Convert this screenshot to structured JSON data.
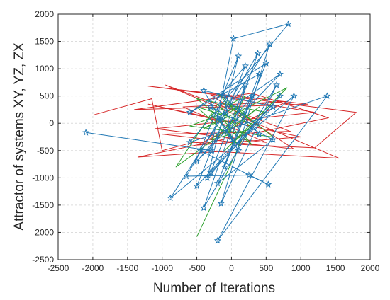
{
  "chart_data": {
    "type": "line",
    "title": "",
    "xlabel": "Number of Iterations",
    "ylabel": "Attractor of systems XY, YZ, ZX",
    "xlim": [
      -2500,
      2000
    ],
    "ylim": [
      -2500,
      2000
    ],
    "xticks": [
      -2500,
      -2000,
      -1500,
      -1000,
      -500,
      0,
      500,
      1000,
      1500,
      2000
    ],
    "yticks": [
      -2500,
      -2000,
      -1500,
      -1000,
      -500,
      0,
      500,
      1000,
      1500,
      2000
    ],
    "grid": true,
    "legend": "none",
    "series": [
      {
        "color": "#d62728",
        "marker": "none",
        "points": [
          [
            -2000,
            150
          ],
          [
            -1150,
            450
          ],
          [
            -1000,
            -500
          ],
          [
            -550,
            -350
          ],
          [
            1200,
            -450
          ],
          [
            1800,
            200
          ],
          [
            -1200,
            680
          ],
          [
            1100,
            350
          ],
          [
            -1400,
            250
          ],
          [
            300,
            550
          ],
          [
            1400,
            100
          ],
          [
            -1350,
            -620
          ],
          [
            -200,
            -520
          ],
          [
            1550,
            -640
          ],
          [
            -950,
            700
          ],
          [
            850,
            -150
          ],
          [
            -1000,
            -200
          ],
          [
            900,
            -470
          ],
          [
            -300,
            520
          ],
          [
            1200,
            200
          ],
          [
            -1100,
            -100
          ],
          [
            500,
            -350
          ],
          [
            -700,
            300
          ],
          [
            800,
            400
          ],
          [
            -500,
            -400
          ],
          [
            1000,
            -250
          ],
          [
            -1200,
            350
          ],
          [
            0,
            0
          ]
        ]
      },
      {
        "color": "#2ca02c",
        "marker": "none",
        "points": [
          [
            -500,
            -2080
          ],
          [
            -100,
            -1000
          ],
          [
            150,
            -300
          ],
          [
            -300,
            150
          ],
          [
            200,
            500
          ],
          [
            -100,
            -200
          ],
          [
            400,
            300
          ],
          [
            -800,
            -800
          ],
          [
            -200,
            350
          ],
          [
            300,
            -400
          ],
          [
            -500,
            450
          ],
          [
            500,
            200
          ],
          [
            -100,
            -500
          ],
          [
            800,
            650
          ],
          [
            -400,
            -100
          ],
          [
            100,
            300
          ],
          [
            -600,
            -50
          ],
          [
            600,
            -250
          ],
          [
            -200,
            550
          ],
          [
            300,
            -100
          ],
          [
            -300,
            -300
          ],
          [
            200,
            200
          ],
          [
            -100,
            400
          ],
          [
            400,
            -50
          ],
          [
            -500,
            300
          ],
          [
            100,
            -400
          ],
          [
            -200,
            100
          ],
          [
            0,
            0
          ]
        ]
      },
      {
        "color": "#1f77b4",
        "marker": "star",
        "points": [
          [
            -2100,
            -170
          ],
          [
            -300,
            -500
          ],
          [
            30,
            1550
          ],
          [
            820,
            1820
          ],
          [
            -600,
            -350
          ],
          [
            1380,
            500
          ],
          [
            -200,
            -2150
          ],
          [
            900,
            500
          ],
          [
            -880,
            -1370
          ],
          [
            550,
            1450
          ],
          [
            -150,
            -1470
          ],
          [
            650,
            700
          ],
          [
            -400,
            -1550
          ],
          [
            380,
            1280
          ],
          [
            -650,
            -970
          ],
          [
            250,
            -950
          ],
          [
            530,
            -1120
          ],
          [
            -450,
            -500
          ],
          [
            100,
            1230
          ],
          [
            -350,
            -1000
          ],
          [
            700,
            500
          ],
          [
            -500,
            -1150
          ],
          [
            200,
            1050
          ],
          [
            -300,
            300
          ],
          [
            600,
            -300
          ],
          [
            -200,
            -1100
          ],
          [
            400,
            900
          ],
          [
            -600,
            200
          ],
          [
            500,
            1100
          ],
          [
            -100,
            -800
          ],
          [
            300,
            500
          ],
          [
            -500,
            -700
          ],
          [
            700,
            900
          ],
          [
            -200,
            100
          ],
          [
            100,
            -500
          ],
          [
            -400,
            600
          ],
          [
            600,
            300
          ],
          [
            -300,
            -900
          ],
          [
            200,
            700
          ],
          [
            0,
            -300
          ],
          [
            -100,
            500
          ],
          [
            400,
            -200
          ]
        ]
      }
    ]
  }
}
